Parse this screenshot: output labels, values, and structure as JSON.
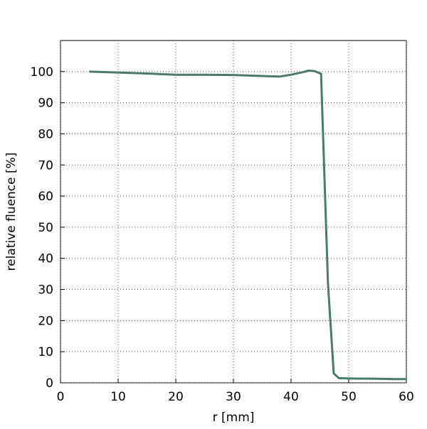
{
  "chart_data": {
    "type": "line",
    "x_label": "r [mm]",
    "y_label": "relative fluence [%]",
    "x": [
      5,
      10,
      15,
      20,
      25,
      30,
      35,
      38,
      40,
      42,
      43,
      44,
      45.2,
      46.4,
      47.4,
      48.3,
      50,
      55,
      58,
      60
    ],
    "series": [
      {
        "color": "#4a7a68",
        "values": [
          100,
          99.7,
          99.4,
          99,
          99,
          98.9,
          98.6,
          98.4,
          99,
          99.8,
          100.3,
          100.2,
          99.3,
          32,
          3,
          1.5,
          1.4,
          1.3,
          1.2,
          1.2
        ]
      }
    ],
    "xlim": [
      0,
      60
    ],
    "xticks": [
      0,
      10,
      20,
      30,
      40,
      50,
      60
    ],
    "ylim": [
      0,
      110
    ],
    "yticks": [
      0,
      10,
      20,
      30,
      40,
      50,
      60,
      70,
      80,
      90,
      100
    ],
    "grid": true
  }
}
